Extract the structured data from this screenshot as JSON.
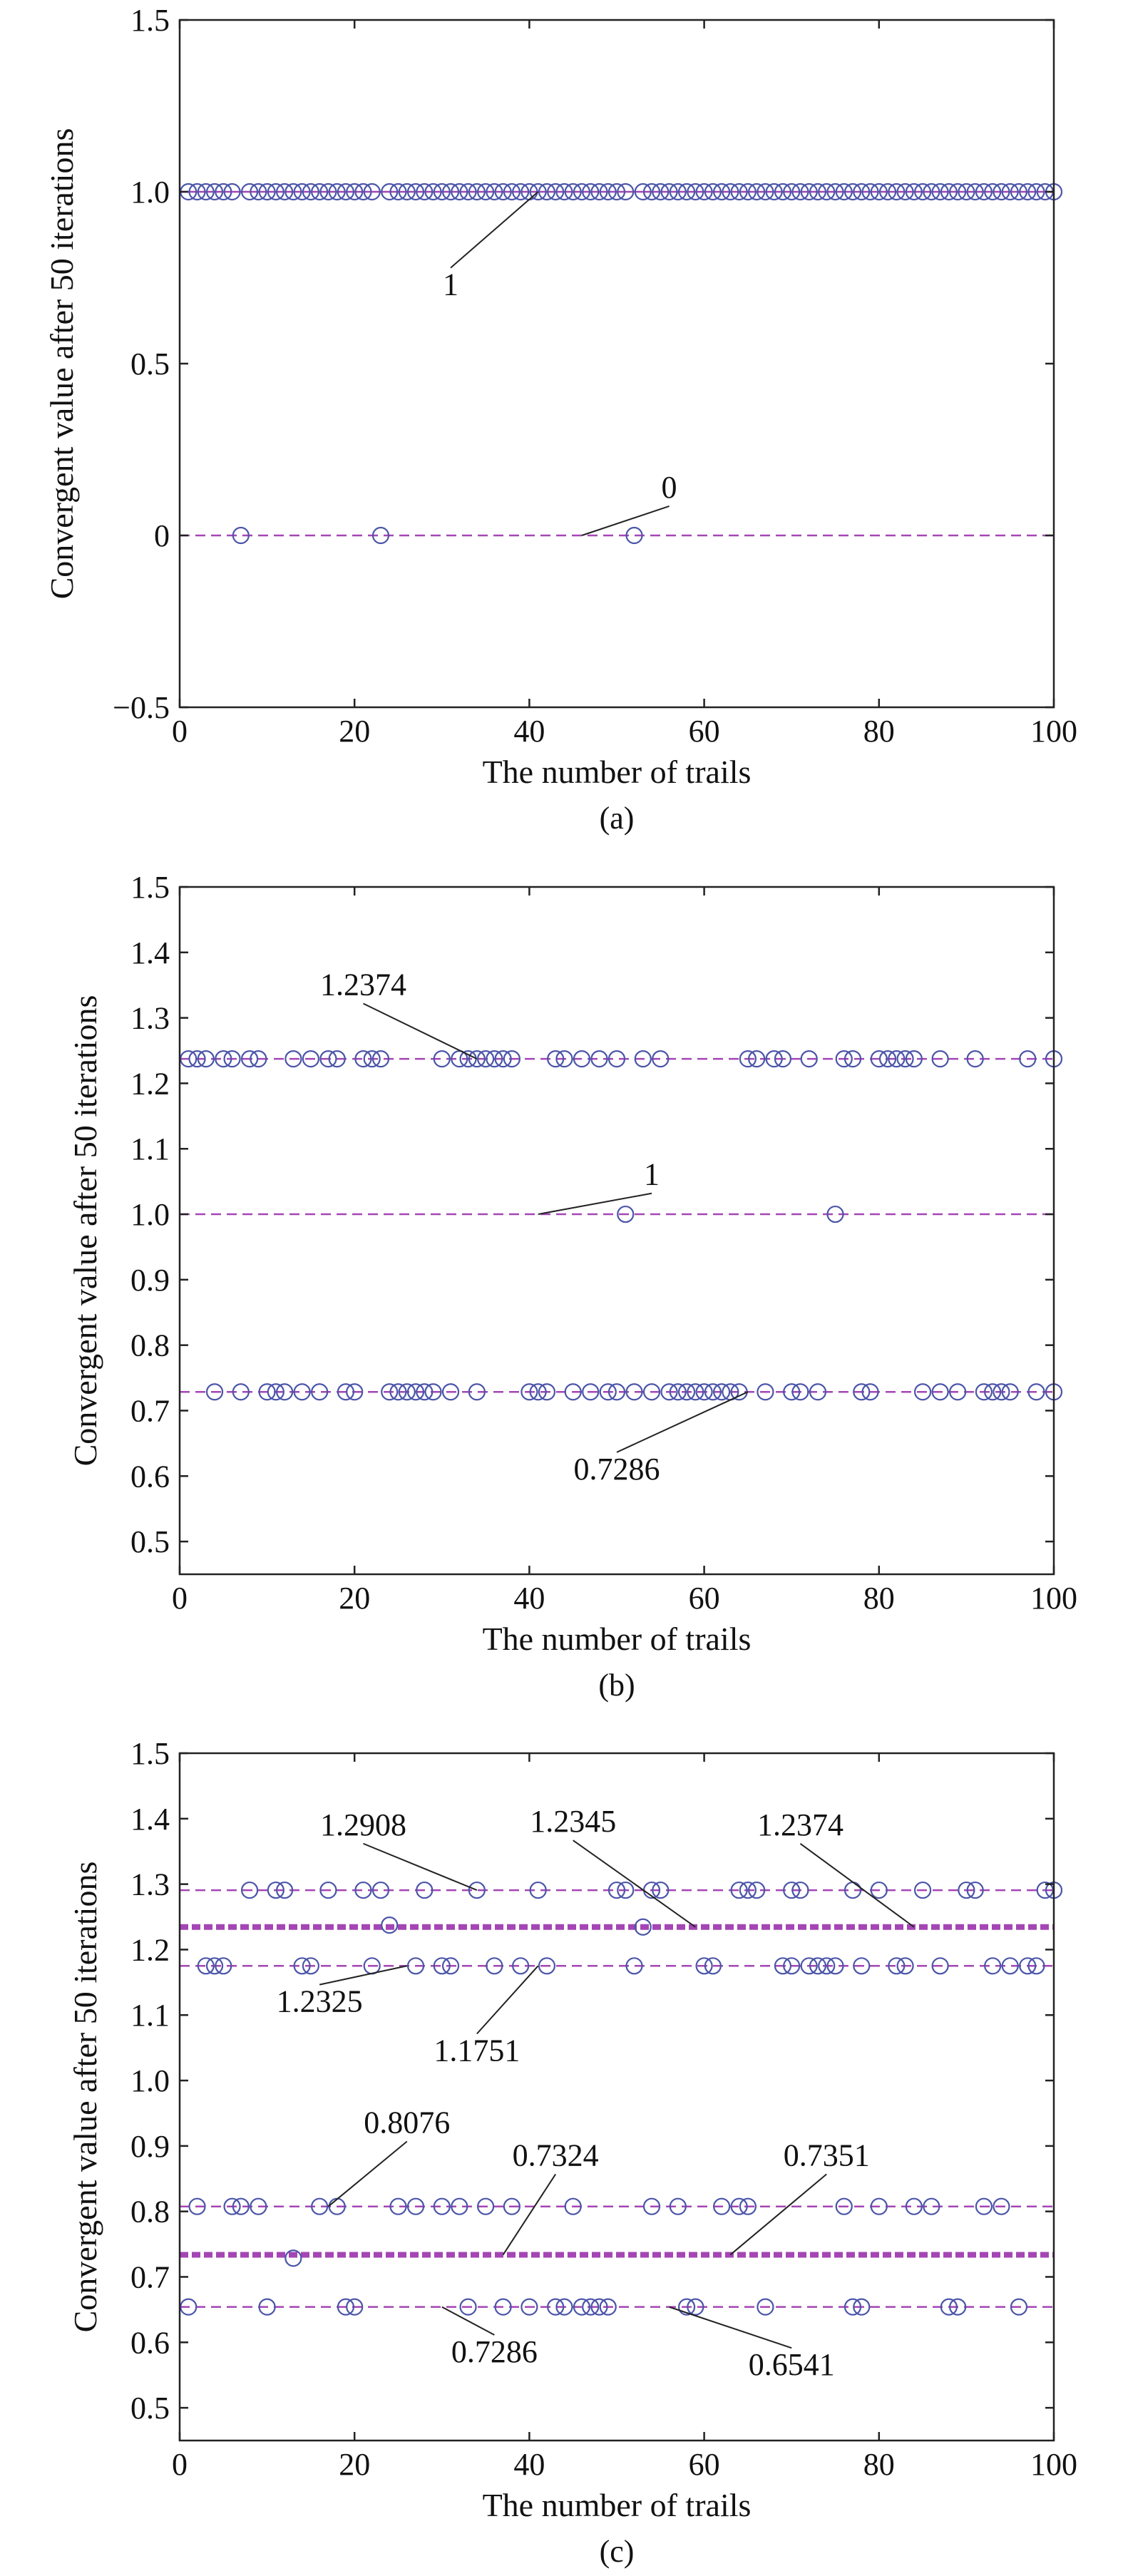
{
  "chart_data": [
    {
      "type": "scatter",
      "panel_label": "(a)",
      "xlabel": "The number of trails",
      "ylabel": "Convergent value after 50 iterations",
      "xlim": [
        0,
        100
      ],
      "ylim": [
        -0.5,
        1.5
      ],
      "xticks": [
        "0",
        "20",
        "40",
        "60",
        "80",
        "100"
      ],
      "yticks": [
        "−0.5",
        "0",
        "0.5",
        "1.0",
        "1.5"
      ],
      "ytick_values": [
        -0.5,
        0,
        0.5,
        1.0,
        1.5
      ],
      "grid": false,
      "reference_lines": [
        {
          "y": 1,
          "style": "solid",
          "color": "#a446b4"
        },
        {
          "y": 0,
          "style": "dashed",
          "color": "#a446b4"
        }
      ],
      "series": [
        {
          "values_at": 1,
          "x": [
            1,
            2,
            3,
            4,
            5,
            6,
            8,
            9,
            10,
            11,
            12,
            13,
            14,
            15,
            16,
            17,
            18,
            19,
            20,
            21,
            22,
            24,
            25,
            26,
            27,
            28,
            29,
            30,
            31,
            32,
            33,
            34,
            35,
            36,
            37,
            38,
            39,
            40,
            41,
            42,
            43,
            44,
            45,
            46,
            47,
            48,
            49,
            50,
            51,
            53,
            54,
            55,
            56,
            57,
            58,
            59,
            60,
            61,
            62,
            63,
            64,
            65,
            66,
            67,
            68,
            69,
            70,
            71,
            72,
            73,
            74,
            75,
            76,
            77,
            78,
            79,
            80,
            81,
            82,
            83,
            84,
            85,
            86,
            87,
            88,
            89,
            90,
            91,
            92,
            93,
            94,
            95,
            96,
            97,
            98,
            99,
            100
          ]
        },
        {
          "values_at": 0,
          "x": [
            7,
            23,
            52
          ]
        }
      ],
      "annotations": [
        {
          "text": "1",
          "x": 31,
          "y": 0.7,
          "point_x": 41,
          "point_y": 1.0
        },
        {
          "text": "0",
          "x": 56,
          "y": 0.11,
          "point_x": 46,
          "point_y": 0.0
        }
      ],
      "marker_color": "#4b55a8"
    },
    {
      "type": "scatter",
      "panel_label": "(b)",
      "xlabel": "The number of trails",
      "ylabel": "Convergent value after 50 iterations",
      "xlim": [
        0,
        100
      ],
      "ylim": [
        0.45,
        1.5
      ],
      "xticks": [
        "0",
        "20",
        "40",
        "60",
        "80",
        "100"
      ],
      "yticks": [
        "0.5",
        "0.6",
        "0.7",
        "0.8",
        "0.9",
        "1.0",
        "1.1",
        "1.2",
        "1.3",
        "1.4",
        "1.5"
      ],
      "ytick_values": [
        0.5,
        0.6,
        0.7,
        0.8,
        0.9,
        1.0,
        1.1,
        1.2,
        1.3,
        1.4,
        1.5
      ],
      "grid": false,
      "reference_lines": [
        {
          "y": 1.2374,
          "style": "dashed",
          "color": "#a446b4"
        },
        {
          "y": 1.0,
          "style": "dashed",
          "color": "#a446b4"
        },
        {
          "y": 0.7286,
          "style": "dashed",
          "color": "#a446b4"
        }
      ],
      "series": [
        {
          "values_at": 1.2374,
          "x": [
            1,
            2,
            3,
            5,
            6,
            8,
            9,
            13,
            15,
            17,
            18,
            21,
            22,
            23,
            30,
            32,
            33,
            34,
            35,
            36,
            37,
            38,
            43,
            44,
            46,
            48,
            50,
            53,
            55,
            65,
            66,
            68,
            69,
            72,
            76,
            77,
            80,
            81,
            82,
            83,
            84,
            87,
            91,
            97,
            100
          ]
        },
        {
          "values_at": 1.0,
          "x": [
            51,
            75
          ]
        },
        {
          "values_at": 0.7286,
          "x": [
            4,
            7,
            10,
            11,
            12,
            14,
            16,
            19,
            20,
            24,
            25,
            26,
            27,
            28,
            29,
            31,
            34,
            40,
            41,
            42,
            45,
            47,
            49,
            50,
            52,
            54,
            56,
            57,
            58,
            59,
            60,
            61,
            62,
            63,
            64,
            67,
            70,
            71,
            73,
            78,
            79,
            85,
            87,
            89,
            92,
            93,
            94,
            95,
            98,
            100
          ]
        }
      ],
      "annotations": [
        {
          "text": "1.2374",
          "x": 21,
          "y": 1.335,
          "point_x": 34,
          "point_y": 1.2374
        },
        {
          "text": "1",
          "x": 54,
          "y": 1.045,
          "point_x": 41,
          "point_y": 1.0
        },
        {
          "text": "0.7286",
          "x": 50,
          "y": 0.595,
          "point_y": 0.7286,
          "point_x": 65
        }
      ],
      "marker_color": "#4b55a8"
    },
    {
      "type": "scatter",
      "panel_label": "(c)",
      "xlabel": "The number of trails",
      "ylabel": "Convergent value after 50 iterations",
      "xlim": [
        0,
        100
      ],
      "ylim": [
        0.45,
        1.5
      ],
      "xticks": [
        "0",
        "20",
        "40",
        "60",
        "80",
        "100"
      ],
      "yticks": [
        "0.5",
        "0.6",
        "0.7",
        "0.8",
        "0.9",
        "1.0",
        "1.1",
        "1.2",
        "1.3",
        "1.4",
        "1.5"
      ],
      "ytick_values": [
        0.5,
        0.6,
        0.7,
        0.8,
        0.9,
        1.0,
        1.1,
        1.2,
        1.3,
        1.4,
        1.5
      ],
      "grid": false,
      "reference_lines": [
        {
          "y": 1.2908,
          "style": "dashed",
          "color": "#a446b4"
        },
        {
          "y": 1.2345,
          "style": "thick-dashed",
          "color": "#a446b4"
        },
        {
          "y": 1.1751,
          "style": "dashed",
          "color": "#a446b4"
        },
        {
          "y": 0.8076,
          "style": "dashed",
          "color": "#a446b4"
        },
        {
          "y": 0.7338,
          "style": "thick-dashed",
          "color": "#a446b4"
        },
        {
          "y": 0.6541,
          "style": "dashed",
          "color": "#a446b4"
        }
      ],
      "series": [
        {
          "values_at": 1.2908,
          "x": [
            8,
            11,
            12,
            17,
            21,
            23,
            28,
            34,
            41,
            50,
            51,
            54,
            55,
            64,
            65,
            66,
            70,
            71,
            77,
            80,
            85,
            90,
            91,
            99,
            100
          ]
        },
        {
          "values_at": 1.2374,
          "x": [
            24
          ]
        },
        {
          "values_at": 1.2345,
          "x": [
            53
          ]
        },
        {
          "values_at": 1.1751,
          "x": [
            3,
            4,
            5,
            14,
            15,
            22,
            27,
            30,
            31,
            36,
            39,
            42,
            52,
            60,
            61,
            69,
            70,
            72,
            73,
            74,
            75,
            78,
            82,
            83,
            87,
            93,
            95,
            97,
            98
          ]
        },
        {
          "values_at": 0.8076,
          "x": [
            2,
            6,
            7,
            9,
            16,
            18,
            25,
            27,
            30,
            32,
            35,
            38,
            45,
            54,
            57,
            62,
            64,
            65,
            76,
            80,
            84,
            86,
            92,
            94
          ]
        },
        {
          "values_at": 0.7286,
          "x": [
            13
          ]
        },
        {
          "values_at": 0.6541,
          "x": [
            1,
            10,
            19,
            20,
            33,
            37,
            40,
            43,
            44,
            46,
            47,
            48,
            49,
            58,
            59,
            67,
            77,
            78,
            88,
            89,
            96
          ]
        }
      ],
      "annotations": [
        {
          "text": "1.2908",
          "x": 21,
          "y": 1.375,
          "point_x": 34,
          "point_y": 1.2908
        },
        {
          "text": "1.2345",
          "x": 45,
          "y": 1.38,
          "point_x": 59,
          "point_y": 1.2345
        },
        {
          "text": "1.2374",
          "x": 71,
          "y": 1.375,
          "point_x": 84,
          "point_y": 1.2345
        },
        {
          "text": "1.2325",
          "x": 16,
          "y": 1.105,
          "point_x": 26,
          "point_y": 1.1751
        },
        {
          "text": "1.1751",
          "x": 34,
          "y": 1.03,
          "point_x": 41,
          "point_y": 1.1751
        },
        {
          "text": "0.8076",
          "x": 26,
          "y": 0.92,
          "point_x": 17,
          "point_y": 0.8076
        },
        {
          "text": "0.7324",
          "x": 43,
          "y": 0.87,
          "point_x": 37,
          "point_y": 0.7338
        },
        {
          "text": "0.7351",
          "x": 74,
          "y": 0.87,
          "point_x": 63,
          "point_y": 0.7338
        },
        {
          "text": "0.7286",
          "x": 36,
          "y": 0.57,
          "point_x": 30,
          "point_y": 0.6541
        },
        {
          "text": "0.6541",
          "x": 70,
          "y": 0.55,
          "point_x": 56,
          "point_y": 0.6541
        }
      ],
      "marker_color": "#4b55a8"
    }
  ]
}
